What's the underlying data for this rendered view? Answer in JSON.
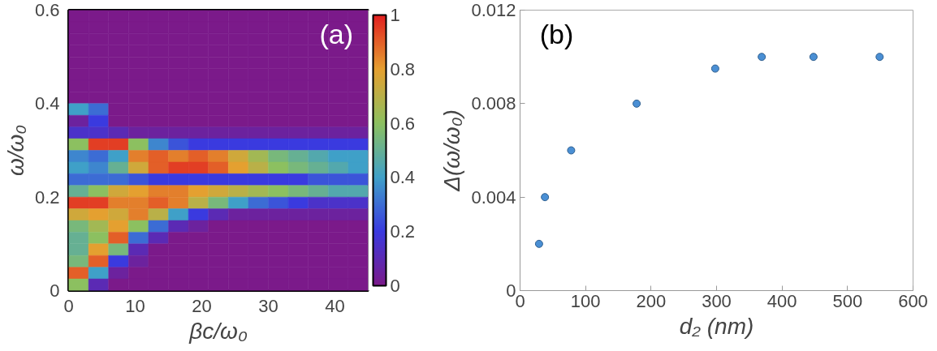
{
  "chart_data": [
    {
      "type": "heatmap",
      "xlabel": "βc/ω₀",
      "ylabel": "ω/ω₀",
      "annotations": [
        "(a)"
      ],
      "x": [
        1.5,
        4.5,
        7.5,
        10.5,
        13.5,
        16.5,
        19.5,
        22.5,
        25.5,
        28.5,
        31.5,
        34.5,
        37.5,
        40.5,
        43.5
      ],
      "y": [
        0.5875,
        0.5625,
        0.5375,
        0.5125,
        0.4875,
        0.4625,
        0.4375,
        0.4125,
        0.3875,
        0.3625,
        0.3375,
        0.3125,
        0.2875,
        0.2625,
        0.2375,
        0.2125,
        0.1875,
        0.1625,
        0.1375,
        0.1125,
        0.0875,
        0.0625,
        0.0375,
        0.0125
      ],
      "cells": [
        [
          0,
          0,
          0,
          0,
          0,
          0,
          0,
          0,
          0,
          0,
          0,
          0,
          0,
          0,
          0
        ],
        [
          0,
          0,
          0,
          0,
          0,
          0,
          0,
          0,
          0,
          0,
          0,
          0,
          0,
          0,
          0
        ],
        [
          0,
          0,
          0,
          0,
          0,
          0,
          0,
          0,
          0,
          0,
          0,
          0,
          0,
          0,
          0
        ],
        [
          0,
          0,
          0,
          0,
          0,
          0,
          0,
          0,
          0,
          0,
          0,
          0,
          0,
          0,
          0
        ],
        [
          0,
          0,
          0,
          0,
          0,
          0,
          0,
          0,
          0,
          0,
          0,
          0,
          0,
          0,
          0
        ],
        [
          0,
          0,
          0,
          0,
          0,
          0,
          0,
          0,
          0,
          0,
          0,
          0,
          0,
          0,
          0
        ],
        [
          0,
          0,
          0,
          0,
          0,
          0,
          0,
          0,
          0,
          0,
          0,
          0,
          0,
          0,
          0
        ],
        [
          0,
          0,
          0,
          0,
          0,
          0,
          0,
          0,
          0,
          0,
          0,
          0,
          0,
          0,
          0
        ],
        [
          0.4,
          0.3,
          0,
          0,
          0,
          0,
          0,
          0,
          0,
          0,
          0,
          0,
          0,
          0,
          0
        ],
        [
          0.05,
          0.2,
          0,
          0,
          0,
          0,
          0,
          0,
          0,
          0,
          0,
          0,
          0,
          0,
          0
        ],
        [
          0.15,
          0.15,
          0.1,
          0.05,
          0.05,
          0.05,
          0.05,
          0.05,
          0.05,
          0.05,
          0.05,
          0.05,
          0.05,
          0.05,
          0.05
        ],
        [
          0.6,
          0.95,
          0.95,
          0.6,
          0.35,
          0.25,
          0.2,
          0.2,
          0.2,
          0.2,
          0.2,
          0.2,
          0.2,
          0.2,
          0.2
        ],
        [
          0.35,
          0.3,
          0.4,
          0.85,
          0.9,
          0.85,
          0.9,
          0.85,
          0.75,
          0.65,
          0.55,
          0.5,
          0.45,
          0.4,
          0.4
        ],
        [
          0.4,
          0.35,
          0.5,
          0.75,
          0.9,
          0.95,
          0.95,
          0.9,
          0.8,
          0.7,
          0.6,
          0.55,
          0.5,
          0.45,
          0.4
        ],
        [
          0.3,
          0.3,
          0.3,
          0.25,
          0.2,
          0.2,
          0.2,
          0.2,
          0.2,
          0.2,
          0.2,
          0.2,
          0.25,
          0.25,
          0.25
        ],
        [
          0.5,
          0.6,
          0.75,
          0.8,
          0.85,
          0.85,
          0.8,
          0.75,
          0.7,
          0.65,
          0.6,
          0.55,
          0.5,
          0.45,
          0.45
        ],
        [
          0.95,
          0.95,
          0.85,
          0.85,
          0.9,
          0.85,
          0.7,
          0.55,
          0.4,
          0.3,
          0.25,
          0.2,
          0.15,
          0.15,
          0.15
        ],
        [
          0.75,
          0.8,
          0.75,
          0.85,
          0.7,
          0.4,
          0.2,
          0.1,
          0.05,
          0.05,
          0.05,
          0.05,
          0.05,
          0.05,
          0.05
        ],
        [
          0.55,
          0.65,
          0.8,
          0.6,
          0.3,
          0.1,
          0.05,
          0,
          0,
          0,
          0,
          0,
          0,
          0,
          0
        ],
        [
          0.5,
          0.6,
          0.9,
          0.3,
          0.1,
          0,
          0,
          0,
          0,
          0,
          0,
          0,
          0,
          0,
          0
        ],
        [
          0.5,
          0.8,
          0.55,
          0.1,
          0,
          0,
          0,
          0,
          0,
          0,
          0,
          0,
          0,
          0,
          0
        ],
        [
          0.55,
          0.9,
          0.2,
          0.05,
          0,
          0,
          0,
          0,
          0,
          0,
          0,
          0,
          0,
          0,
          0
        ],
        [
          0.9,
          0.4,
          0.05,
          0,
          0,
          0,
          0,
          0,
          0,
          0,
          0,
          0,
          0,
          0,
          0
        ],
        [
          0.6,
          0.1,
          0,
          0,
          0,
          0,
          0,
          0,
          0,
          0,
          0,
          0,
          0,
          0,
          0
        ]
      ],
      "xlim": [
        0,
        45
      ],
      "ylim": [
        0,
        0.6
      ],
      "xticks": [
        0,
        10,
        20,
        30,
        40
      ],
      "yticks": [
        0,
        0.2,
        0.4,
        0.6
      ],
      "clim": [
        0,
        1
      ],
      "cticks": [
        0,
        0.2,
        0.4,
        0.6,
        0.8,
        1
      ]
    },
    {
      "type": "scatter",
      "xlabel": "d₂ (nm)",
      "ylabel": "Δ(ω/ω₀)",
      "annotations": [
        "(b)"
      ],
      "x": [
        29,
        38,
        78,
        178,
        298,
        369,
        448,
        549
      ],
      "values": [
        0.002,
        0.004,
        0.006,
        0.008,
        0.0095,
        0.01,
        0.01,
        0.01
      ],
      "color": "#4a8fd4",
      "marker": "circle",
      "xlim": [
        0,
        600
      ],
      "ylim": [
        0,
        0.012
      ],
      "xticks": [
        0,
        100,
        200,
        300,
        400,
        500,
        600
      ],
      "yticks": [
        0,
        0.004,
        0.008,
        0.012
      ],
      "grid": false
    }
  ]
}
